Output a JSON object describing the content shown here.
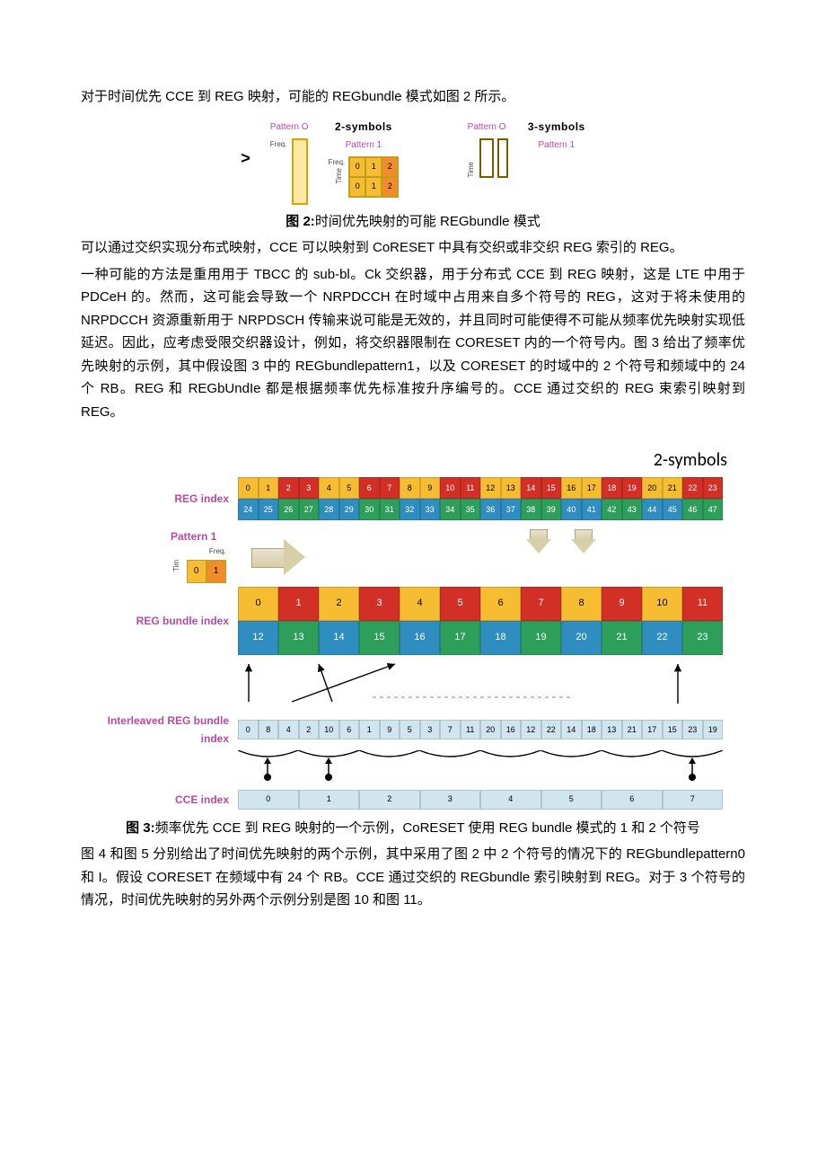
{
  "text": {
    "p1": "对于时间优先 CCE 到 REG 映射，可能的 REGbundle 模式如图 2 所示。",
    "cap2_a": "图 2:",
    "cap2_b": "时间优先映射的可能 REGbundle 模式",
    "p2": "可以通过交织实现分布式映射，CCE 可以映射到 CoRESET 中具有交织或非交织 REG 索引的 REG。",
    "p3": "一种可能的方法是重用用于 TBCC 的 sub-bl。Ck 交织器，用于分布式 CCE 到 REG 映射，这是 LTE 中用于 PDCeH 的。然而，这可能会导致一个 NRPDCCH 在时域中占用来自多个符号的 REG，这对于将未使用的 NRPDCCH 资源重新用于 NRPDSCH 传输来说可能是无效的，并且同时可能使得不可能从频率优先映射实现低延迟。因此，应考虑受限交织器设计，例如，将交织器限制在 CORESET 内的一个符号内。图 3 给出了频率优先映射的示例，其中假设图 3 中的 REGbundlepattern1，以及 CORESET 的时域中的 2 个符号和频域中的 24 个 RB。REG 和 REGbUndIe 都是根据频率优先标准按升序编号的。CCE 通过交织的 REG 束索引映射到 REG。",
    "cap3_a": "图 3:",
    "cap3_b": "频率优先 CCE 到 REG 映射的一个示例，CoRESET 使用 REG bundle 模式的 1 和 2 个符号",
    "p4": "图 4 和图 5 分别给出了时间优先映射的两个示例，其中采用了图 2 中 2 个符号的情况下的 REGbundlepattern0 和 I。假设 CORESET 在频域中有 24 个 RB。CCE 通过交织的 REGbundle 索引映射到 REG。对于 3 个符号的情况，时间优先映射的另外两个示例分别是图 10 和图 11。"
  },
  "fig2": {
    "group_a": "2-symbols",
    "group_b": "3-symbols",
    "pat0": "Pattern O",
    "pat1": "Pattern 1",
    "freq": "Freq.",
    "time": "Time",
    "grid": [
      "0",
      "1",
      "2",
      "0",
      "1",
      "2"
    ]
  },
  "fig3": {
    "title": "2-symbols",
    "label_reg": "REG index",
    "label_pat": "Pattern 1",
    "label_bundle": "REG bundle index",
    "label_ilv": "Interleaved REG bundle index",
    "label_cce": "CCE index",
    "freq": "Freq.",
    "tim": "Tim",
    "reg_row1": {
      "vals": [
        "0",
        "1",
        "2",
        "3",
        "4",
        "5",
        "6",
        "7",
        "8",
        "9",
        "10",
        "11",
        "12",
        "13",
        "14",
        "15",
        "16",
        "17",
        "18",
        "19",
        "20",
        "21",
        "22",
        "23"
      ],
      "colors": [
        "c-y",
        "c-y",
        "c-r",
        "c-r",
        "c-y",
        "c-y",
        "c-r",
        "c-r",
        "c-y",
        "c-y",
        "c-r",
        "c-r",
        "c-y",
        "c-y",
        "c-r",
        "c-r",
        "c-y",
        "c-y",
        "c-r",
        "c-r",
        "c-y",
        "c-y",
        "c-r",
        "c-r"
      ]
    },
    "reg_row2": {
      "vals": [
        "24",
        "25",
        "26",
        "27",
        "28",
        "29",
        "30",
        "31",
        "32",
        "33",
        "34",
        "35",
        "36",
        "37",
        "38",
        "39",
        "40",
        "41",
        "42",
        "43",
        "44",
        "45",
        "46",
        "47"
      ],
      "colors": [
        "c-b",
        "c-b",
        "c-g",
        "c-g",
        "c-b",
        "c-b",
        "c-g",
        "c-g",
        "c-b",
        "c-b",
        "c-g",
        "c-g",
        "c-b",
        "c-b",
        "c-g",
        "c-g",
        "c-b",
        "c-b",
        "c-g",
        "c-g",
        "c-b",
        "c-b",
        "c-g",
        "c-g"
      ]
    },
    "small": [
      "0",
      "1"
    ],
    "bundle_row1": {
      "vals": [
        "0",
        "1",
        "2",
        "3",
        "4",
        "5",
        "6",
        "7",
        "8",
        "9",
        "10",
        "11"
      ],
      "colors": [
        "c-y",
        "c-r",
        "c-y",
        "c-r",
        "c-y",
        "c-r",
        "c-y",
        "c-r",
        "c-y",
        "c-r",
        "c-y",
        "c-r"
      ]
    },
    "bundle_row2": {
      "vals": [
        "12",
        "13",
        "14",
        "15",
        "16",
        "17",
        "18",
        "19",
        "20",
        "21",
        "22",
        "23"
      ],
      "colors": [
        "c-b",
        "c-g",
        "c-b",
        "c-g",
        "c-b",
        "c-g",
        "c-b",
        "c-g",
        "c-b",
        "c-g",
        "c-b",
        "c-g"
      ]
    },
    "ilv": [
      "0",
      "8",
      "4",
      "2",
      "10",
      "6",
      "1",
      "9",
      "5",
      "3",
      "7",
      "11",
      "20",
      "16",
      "12",
      "22",
      "14",
      "18",
      "13",
      "21",
      "17",
      "15",
      "23",
      "19"
    ],
    "cce": [
      "0",
      "1",
      "2",
      "3",
      "4",
      "5",
      "6",
      "7"
    ]
  },
  "colors": {
    "magenta": "#b84aa0",
    "yellow": "#f6bd32",
    "red": "#d22f27",
    "blue": "#2f8dbf",
    "green": "#2e9e5b",
    "lightblue": "#cfe5ef"
  }
}
